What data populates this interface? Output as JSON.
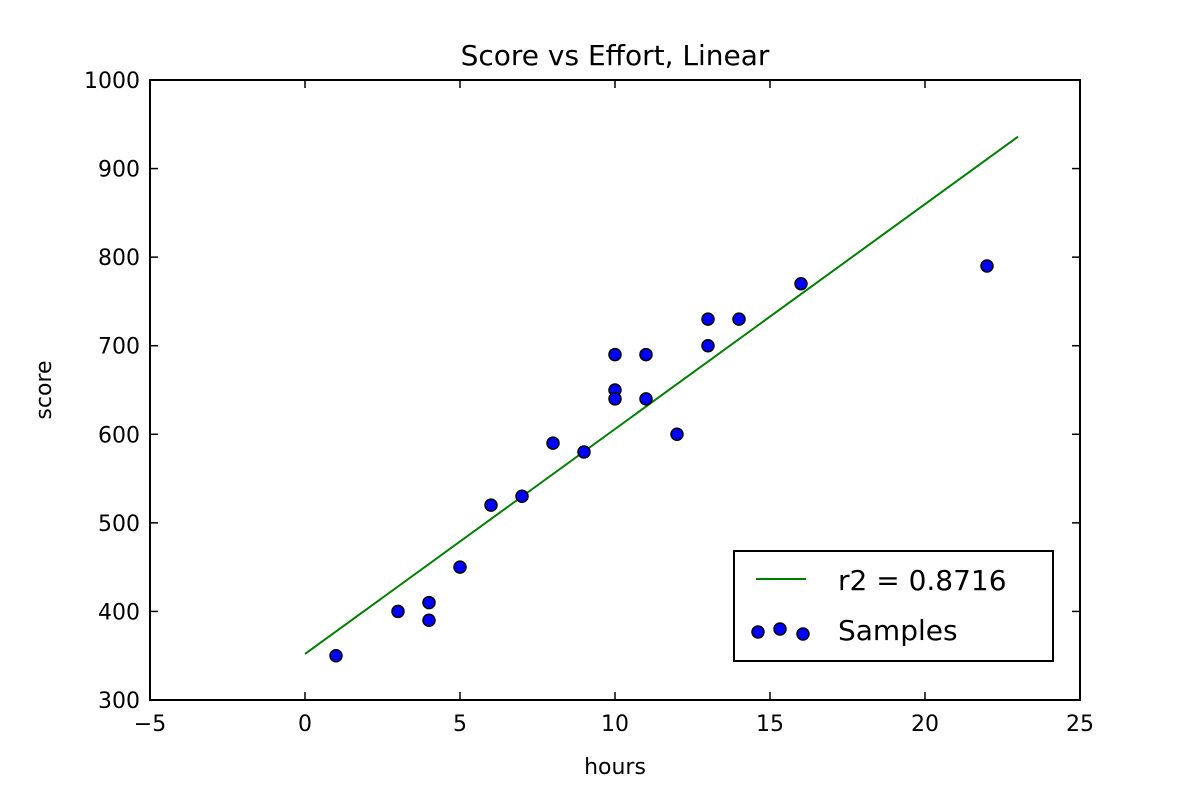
{
  "chart_data": {
    "type": "scatter",
    "title": "Score vs Effort, Linear",
    "xlabel": "hours",
    "ylabel": "score",
    "xlim": [
      -5,
      25
    ],
    "ylim": [
      300,
      1000
    ],
    "xticks": [
      -5,
      0,
      5,
      10,
      15,
      20,
      25
    ],
    "yticks": [
      300,
      400,
      500,
      600,
      700,
      800,
      900,
      1000
    ],
    "xtick_labels": [
      "−5",
      "0",
      "5",
      "10",
      "15",
      "20",
      "25"
    ],
    "ytick_labels": [
      "300",
      "400",
      "500",
      "600",
      "700",
      "800",
      "900",
      "1000"
    ],
    "grid": false,
    "legend_position": "lower-right",
    "series": [
      {
        "name": "Samples",
        "kind": "scatter",
        "color": "#0000ff",
        "points": [
          {
            "x": 1,
            "y": 350
          },
          {
            "x": 3,
            "y": 400
          },
          {
            "x": 4,
            "y": 410
          },
          {
            "x": 4,
            "y": 390
          },
          {
            "x": 5,
            "y": 450
          },
          {
            "x": 6,
            "y": 520
          },
          {
            "x": 7,
            "y": 530
          },
          {
            "x": 8,
            "y": 590
          },
          {
            "x": 9,
            "y": 580
          },
          {
            "x": 10,
            "y": 690
          },
          {
            "x": 10,
            "y": 650
          },
          {
            "x": 10,
            "y": 640
          },
          {
            "x": 11,
            "y": 690
          },
          {
            "x": 11,
            "y": 640
          },
          {
            "x": 12,
            "y": 600
          },
          {
            "x": 13,
            "y": 730
          },
          {
            "x": 13,
            "y": 700
          },
          {
            "x": 14,
            "y": 730
          },
          {
            "x": 16,
            "y": 770
          },
          {
            "x": 22,
            "y": 790
          }
        ]
      },
      {
        "name": "r2 = 0.8716",
        "kind": "line",
        "color": "#008000",
        "points": [
          {
            "x": 0,
            "y": 352
          },
          {
            "x": 23,
            "y": 936
          }
        ]
      }
    ]
  }
}
